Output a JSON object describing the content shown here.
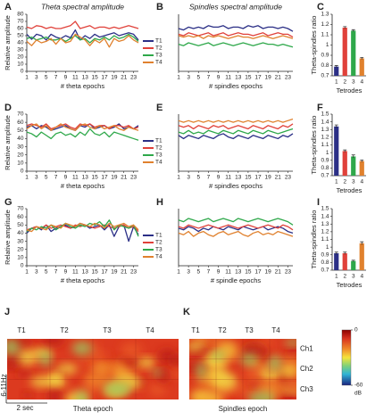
{
  "chart_data": [
    {
      "type": "line",
      "panel": "A",
      "title": "Theta spectral amplitude",
      "ylabel": "Relative amplitude",
      "xlabel": "# theta epochs",
      "xlim": [
        1,
        24
      ],
      "xticks": [
        1,
        3,
        5,
        7,
        9,
        11,
        13,
        15,
        17,
        19,
        21,
        23
      ],
      "ylim": [
        0,
        80
      ],
      "yticks": [
        0,
        10,
        20,
        30,
        40,
        50,
        60,
        70,
        80
      ],
      "legend": "right",
      "x": [
        1,
        2,
        3,
        4,
        5,
        6,
        7,
        8,
        9,
        10,
        11,
        12,
        13,
        14,
        15,
        16,
        17,
        18,
        19,
        20,
        21,
        22,
        23,
        24
      ],
      "series": [
        {
          "name": "T1",
          "color": "#2b2f86",
          "values": [
            52,
            45,
            52,
            50,
            44,
            52,
            48,
            46,
            50,
            47,
            58,
            44,
            50,
            46,
            52,
            48,
            50,
            52,
            54,
            50,
            52,
            54,
            52,
            44
          ]
        },
        {
          "name": "T2",
          "color": "#e0413a",
          "values": [
            62,
            60,
            64,
            63,
            60,
            62,
            60,
            60,
            62,
            64,
            70,
            60,
            62,
            64,
            60,
            62,
            62,
            60,
            62,
            60,
            62,
            64,
            62,
            60
          ]
        },
        {
          "name": "T3",
          "color": "#2ea84a",
          "values": [
            46,
            48,
            44,
            46,
            48,
            44,
            44,
            46,
            42,
            46,
            50,
            44,
            46,
            40,
            46,
            44,
            48,
            44,
            50,
            46,
            48,
            52,
            48,
            42
          ]
        },
        {
          "name": "T4",
          "color": "#e0812e",
          "values": [
            42,
            36,
            44,
            40,
            42,
            46,
            38,
            46,
            40,
            42,
            52,
            48,
            44,
            36,
            44,
            40,
            46,
            34,
            46,
            42,
            44,
            50,
            44,
            40
          ]
        }
      ]
    },
    {
      "type": "line",
      "panel": "B",
      "title": "Spindles spectral amplitude",
      "xlabel": "# spindles epochs",
      "xlim": [
        1,
        24
      ],
      "xticks": [
        1,
        3,
        5,
        7,
        9,
        11,
        13,
        15,
        17,
        19,
        21,
        23
      ],
      "ylim": [
        0,
        80
      ],
      "x": [
        1,
        2,
        3,
        4,
        5,
        6,
        7,
        8,
        9,
        10,
        11,
        12,
        13,
        14,
        15,
        16,
        17,
        18,
        19,
        20,
        21,
        22,
        23,
        24
      ],
      "series": [
        {
          "color": "#2b2f86",
          "values": [
            60,
            58,
            62,
            60,
            62,
            60,
            64,
            62,
            62,
            64,
            60,
            62,
            62,
            60,
            64,
            62,
            64,
            60,
            62,
            62,
            60,
            62,
            60,
            56
          ]
        },
        {
          "color": "#e0413a",
          "values": [
            52,
            50,
            54,
            52,
            50,
            52,
            54,
            50,
            52,
            54,
            50,
            52,
            54,
            52,
            52,
            50,
            52,
            54,
            50,
            52,
            54,
            52,
            52,
            48
          ]
        },
        {
          "color": "#2ea84a",
          "values": [
            38,
            36,
            40,
            38,
            36,
            38,
            40,
            36,
            38,
            40,
            38,
            36,
            38,
            40,
            38,
            36,
            38,
            40,
            38,
            38,
            36,
            38,
            36,
            34
          ]
        },
        {
          "color": "#e0812e",
          "values": [
            50,
            48,
            50,
            48,
            50,
            46,
            50,
            48,
            50,
            48,
            46,
            48,
            50,
            48,
            48,
            46,
            48,
            50,
            48,
            46,
            48,
            50,
            48,
            46
          ]
        }
      ]
    },
    {
      "type": "bar",
      "panel": "C",
      "ylabel": "Theta-spindles ratio",
      "xlabel": "Tetrodes",
      "categories": [
        "1",
        "2",
        "3",
        "4"
      ],
      "values": [
        0.79,
        1.17,
        1.14,
        0.87
      ],
      "errors": [
        0.01,
        0.01,
        0.01,
        0.01
      ],
      "colors": [
        "#2b2f86",
        "#e0413a",
        "#2ea84a",
        "#e0812e"
      ],
      "ylim": [
        0.7,
        1.3
      ],
      "yticks": [
        0.7,
        0.8,
        0.9,
        {
          "value": 1,
          "label": "1"
        },
        1.1,
        1.2,
        1.3
      ]
    },
    {
      "type": "line",
      "panel": "D",
      "ylabel": "Relative amplitude",
      "xlabel": "# theta epochs",
      "xlim": [
        1,
        24
      ],
      "xticks": [
        1,
        3,
        5,
        7,
        9,
        11,
        13,
        15,
        17,
        19,
        21,
        23
      ],
      "ylim": [
        0,
        70
      ],
      "yticks": [
        0,
        10,
        20,
        30,
        40,
        50,
        60,
        70
      ],
      "legend": "right",
      "x": [
        1,
        2,
        3,
        4,
        5,
        6,
        7,
        8,
        9,
        10,
        11,
        12,
        13,
        14,
        15,
        16,
        17,
        18,
        19,
        20,
        21,
        22,
        23,
        24
      ],
      "series": [
        {
          "name": "T1",
          "color": "#2b2f86",
          "values": [
            54,
            56,
            52,
            56,
            54,
            50,
            52,
            54,
            56,
            52,
            50,
            56,
            54,
            58,
            52,
            54,
            56,
            52,
            54,
            58,
            52,
            54,
            52,
            56
          ]
        },
        {
          "name": "T2",
          "color": "#e0413a",
          "values": [
            56,
            58,
            56,
            54,
            58,
            52,
            54,
            56,
            58,
            54,
            52,
            58,
            56,
            58,
            54,
            56,
            56,
            52,
            56,
            56,
            54,
            56,
            52,
            54
          ]
        },
        {
          "name": "T3",
          "color": "#2ea84a",
          "values": [
            48,
            46,
            42,
            48,
            44,
            40,
            46,
            48,
            44,
            46,
            42,
            48,
            44,
            52,
            46,
            44,
            48,
            42,
            48,
            46,
            44,
            42,
            40,
            38
          ]
        },
        {
          "name": "T4",
          "color": "#e0812e",
          "values": [
            52,
            56,
            58,
            52,
            56,
            50,
            54,
            58,
            54,
            52,
            50,
            56,
            58,
            54,
            52,
            56,
            52,
            54,
            56,
            52,
            50,
            54,
            52,
            50
          ]
        }
      ]
    },
    {
      "type": "line",
      "panel": "E",
      "xlabel": "# spindles epochs",
      "xlim": [
        1,
        24
      ],
      "xticks": [
        1,
        3,
        5,
        7,
        9,
        11,
        13,
        15,
        17,
        19,
        21,
        23
      ],
      "ylim": [
        0,
        70
      ],
      "x": [
        1,
        2,
        3,
        4,
        5,
        6,
        7,
        8,
        9,
        10,
        11,
        12,
        13,
        14,
        15,
        16,
        17,
        18,
        19,
        20,
        21,
        22,
        23,
        24
      ],
      "series": [
        {
          "color": "#2b2f86",
          "values": [
            44,
            40,
            44,
            42,
            40,
            44,
            42,
            40,
            44,
            46,
            42,
            40,
            44,
            42,
            40,
            44,
            42,
            40,
            44,
            42,
            40,
            44,
            42,
            46
          ]
        },
        {
          "color": "#e0413a",
          "values": [
            56,
            54,
            56,
            52,
            56,
            54,
            52,
            56,
            54,
            56,
            52,
            54,
            56,
            54,
            52,
            56,
            54,
            52,
            56,
            54,
            52,
            56,
            54,
            58
          ]
        },
        {
          "color": "#2ea84a",
          "values": [
            48,
            46,
            50,
            46,
            48,
            46,
            50,
            48,
            46,
            50,
            48,
            46,
            50,
            48,
            46,
            50,
            48,
            46,
            50,
            48,
            46,
            48,
            50,
            52
          ]
        },
        {
          "color": "#e0812e",
          "values": [
            62,
            60,
            62,
            60,
            62,
            60,
            62,
            60,
            62,
            60,
            62,
            60,
            62,
            60,
            62,
            60,
            62,
            60,
            62,
            60,
            62,
            60,
            62,
            64
          ]
        }
      ]
    },
    {
      "type": "bar",
      "panel": "F",
      "ylabel": "Theta-spindles ratio",
      "xlabel": "Tetrodes",
      "categories": [
        "1",
        "2",
        "3",
        "4"
      ],
      "values": [
        1.34,
        1.02,
        0.95,
        0.89
      ],
      "errors": [
        0.02,
        0.015,
        0.02,
        0.015
      ],
      "colors": [
        "#2b2f86",
        "#e0413a",
        "#2ea84a",
        "#e0812e"
      ],
      "ylim": [
        0.7,
        1.5
      ],
      "yticks": [
        0.7,
        0.8,
        0.9,
        {
          "value": 1,
          "label": "1"
        },
        1.1,
        1.2,
        1.3,
        1.4,
        1.5
      ]
    },
    {
      "type": "line",
      "panel": "G",
      "ylabel": "Relative amplitude",
      "xlabel": "# theta epochs",
      "xlim": [
        1,
        24
      ],
      "xticks": [
        1,
        3,
        5,
        7,
        9,
        11,
        13,
        15,
        17,
        19,
        21,
        23
      ],
      "ylim": [
        0,
        70
      ],
      "yticks": [
        0,
        10,
        20,
        30,
        40,
        50,
        60,
        70
      ],
      "legend": "right",
      "x": [
        1,
        2,
        3,
        4,
        5,
        6,
        7,
        8,
        9,
        10,
        11,
        12,
        13,
        14,
        15,
        16,
        17,
        18,
        19,
        20,
        21,
        22,
        23,
        24
      ],
      "series": [
        {
          "name": "T1",
          "color": "#2b2f86",
          "values": [
            40,
            46,
            48,
            44,
            50,
            42,
            46,
            48,
            50,
            46,
            48,
            52,
            50,
            46,
            48,
            50,
            44,
            50,
            36,
            48,
            50,
            30,
            48,
            38
          ]
        },
        {
          "name": "T2",
          "color": "#e0413a",
          "values": [
            44,
            46,
            48,
            46,
            50,
            46,
            48,
            50,
            48,
            46,
            50,
            48,
            50,
            48,
            46,
            48,
            50,
            48,
            46,
            48,
            50,
            46,
            48,
            42
          ]
        },
        {
          "name": "T3",
          "color": "#2ea84a",
          "values": [
            42,
            46,
            44,
            48,
            46,
            50,
            44,
            48,
            52,
            48,
            46,
            50,
            48,
            52,
            50,
            54,
            48,
            56,
            44,
            50,
            48,
            46,
            50,
            36
          ]
        },
        {
          "name": "T4",
          "color": "#e0812e",
          "values": [
            44,
            42,
            48,
            46,
            44,
            50,
            48,
            46,
            52,
            50,
            48,
            52,
            50,
            48,
            52,
            50,
            46,
            52,
            48,
            50,
            52,
            48,
            50,
            44
          ]
        }
      ]
    },
    {
      "type": "line",
      "panel": "H",
      "xlabel": "# spindle epochs",
      "xlim": [
        1,
        24
      ],
      "xticks": [
        1,
        3,
        5,
        7,
        9,
        11,
        13,
        15,
        17,
        19,
        21,
        23
      ],
      "ylim": [
        0,
        70
      ],
      "x": [
        1,
        2,
        3,
        4,
        5,
        6,
        7,
        8,
        9,
        10,
        11,
        12,
        13,
        14,
        15,
        16,
        17,
        18,
        19,
        20,
        21,
        22,
        23,
        24
      ],
      "series": [
        {
          "color": "#2b2f86",
          "values": [
            46,
            44,
            48,
            46,
            42,
            46,
            44,
            48,
            46,
            44,
            48,
            46,
            44,
            48,
            46,
            44,
            46,
            48,
            44,
            46,
            48,
            46,
            42,
            40
          ]
        },
        {
          "color": "#e0413a",
          "values": [
            48,
            46,
            50,
            48,
            46,
            48,
            50,
            48,
            46,
            48,
            50,
            48,
            46,
            48,
            50,
            48,
            46,
            48,
            50,
            48,
            46,
            50,
            48,
            44
          ]
        },
        {
          "color": "#2ea84a",
          "values": [
            56,
            54,
            58,
            56,
            54,
            56,
            58,
            54,
            56,
            58,
            56,
            54,
            58,
            56,
            54,
            56,
            58,
            56,
            54,
            56,
            58,
            56,
            54,
            50
          ]
        },
        {
          "color": "#e0812e",
          "values": [
            40,
            38,
            42,
            36,
            40,
            42,
            38,
            36,
            40,
            42,
            38,
            40,
            42,
            38,
            36,
            40,
            42,
            38,
            40,
            38,
            42,
            40,
            38,
            36
          ]
        }
      ]
    },
    {
      "type": "bar",
      "panel": "I",
      "ylabel": "Theta-spindles ratio",
      "xlabel": "Tetrodes",
      "categories": [
        "1",
        "2",
        "3",
        "4"
      ],
      "values": [
        0.92,
        0.92,
        0.82,
        1.05
      ],
      "errors": [
        0.015,
        0.015,
        0.01,
        0.02
      ],
      "colors": [
        "#2b2f86",
        "#e0413a",
        "#2ea84a",
        "#e0812e"
      ],
      "ylim": [
        0.7,
        1.5
      ],
      "yticks": [
        0.7,
        0.8,
        0.9,
        {
          "value": 1,
          "label": "1"
        },
        1.1,
        1.2,
        1.3,
        1.4,
        1.5
      ]
    },
    {
      "type": "heatmap",
      "panel": "J",
      "columns": [
        "T1",
        "T2",
        "T3",
        "T4"
      ],
      "ylabel": "6-11Hz",
      "scale_label": "2 sec",
      "xlabel": "Theta epoch"
    },
    {
      "type": "heatmap",
      "panel": "K",
      "columns": [
        "T1",
        "T2",
        "T3",
        "T4"
      ],
      "rows": [
        "Ch1",
        "Ch2",
        "Ch3"
      ],
      "xlabel": "Spindles epoch",
      "zlim": [
        -60,
        0
      ],
      "zticks": [
        0,
        -60
      ],
      "zlabel": "dB"
    }
  ]
}
